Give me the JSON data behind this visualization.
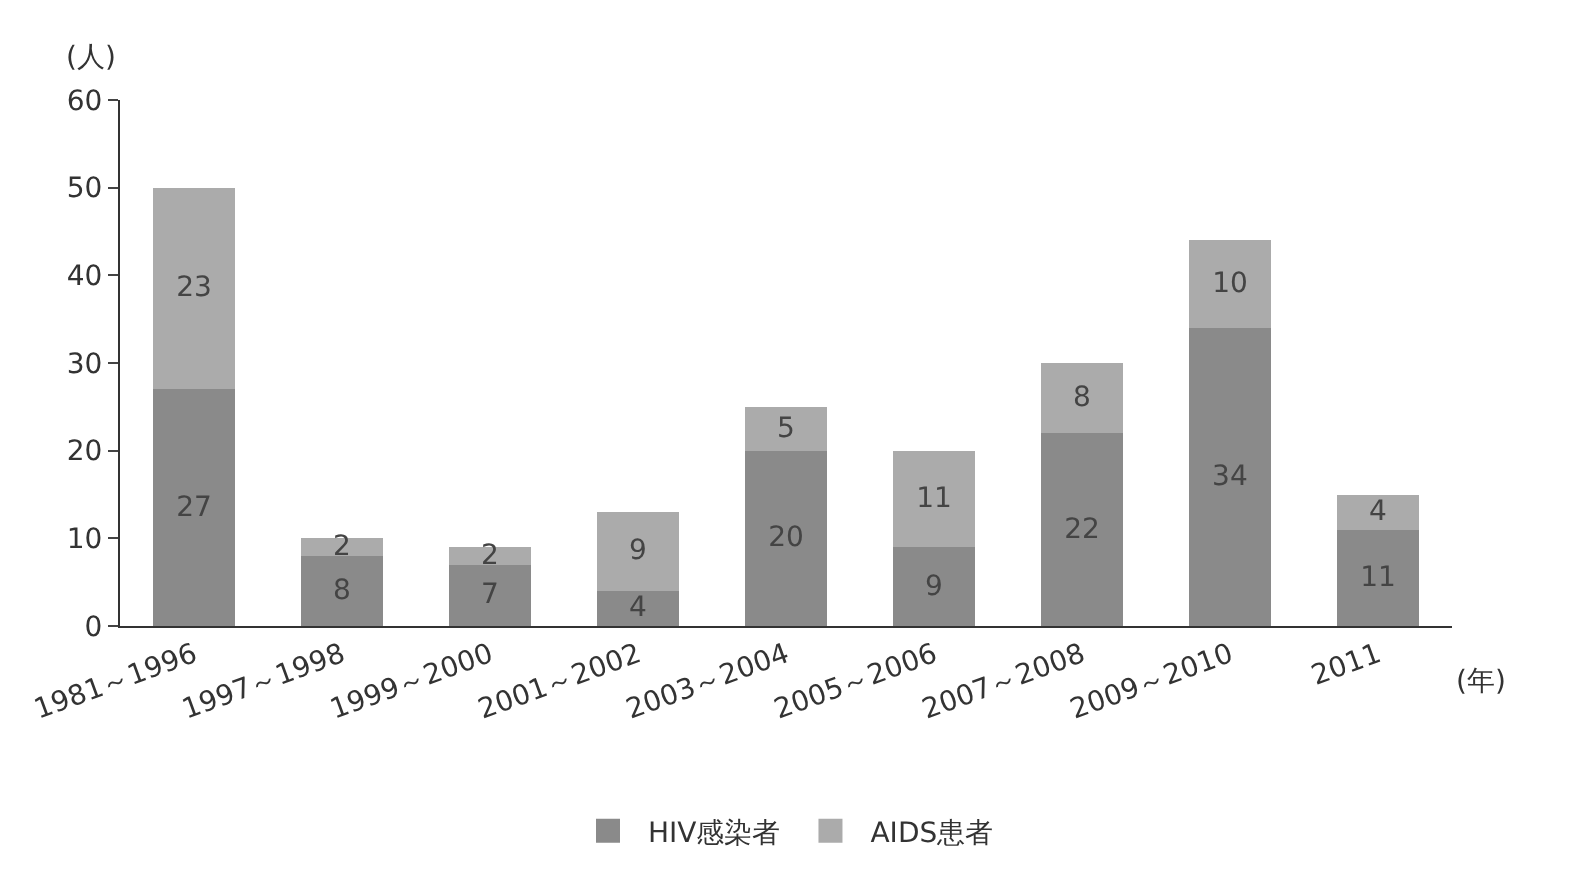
{
  "chart_data": {
    "type": "bar",
    "stacked": true,
    "ylabel": "(人)",
    "xlabel": "(年)",
    "categories": [
      "1981～1996",
      "1997～1998",
      "1999～2000",
      "2001～2002",
      "2003～2004",
      "2005～2006",
      "2007～2008",
      "2009～2010",
      "2011"
    ],
    "series": [
      {
        "name": "HIV感染者",
        "color": "#8a8a8a",
        "values": [
          27,
          8,
          7,
          4,
          20,
          9,
          22,
          34,
          11
        ]
      },
      {
        "name": "AIDS患者",
        "color": "#ababab",
        "values": [
          23,
          2,
          2,
          9,
          5,
          11,
          8,
          10,
          4
        ]
      }
    ],
    "ylim": [
      0,
      60
    ],
    "yticks": [
      0,
      10,
      20,
      30,
      40,
      50,
      60
    ],
    "legend": "bottom",
    "data_labels": true
  }
}
